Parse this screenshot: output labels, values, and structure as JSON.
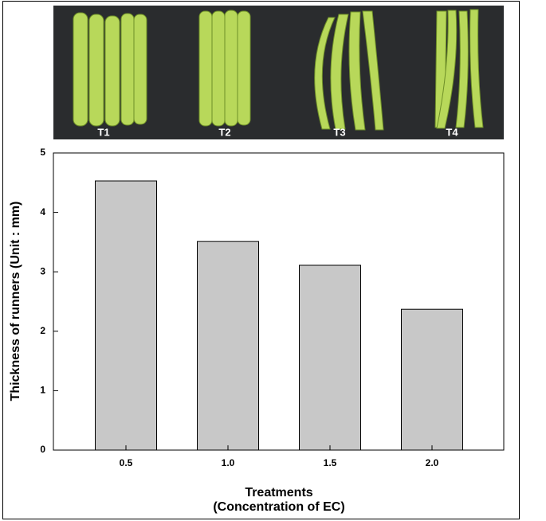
{
  "photo_labels": [
    "T1",
    "T2",
    "T3",
    "T4"
  ],
  "chart_data": {
    "type": "bar",
    "ylabel": "Thickness of runners (Unit : mm)",
    "xlabel": [
      "Treatments",
      "(Concentration of EC)"
    ],
    "categories": [
      "0.5",
      "1.0",
      "1.5",
      "2.0"
    ],
    "values": [
      4.53,
      3.51,
      3.11,
      2.37
    ],
    "color": "#c8c8c8",
    "ylim": [
      0,
      5
    ],
    "yticks": [
      0,
      1,
      2,
      3,
      4,
      5
    ]
  }
}
